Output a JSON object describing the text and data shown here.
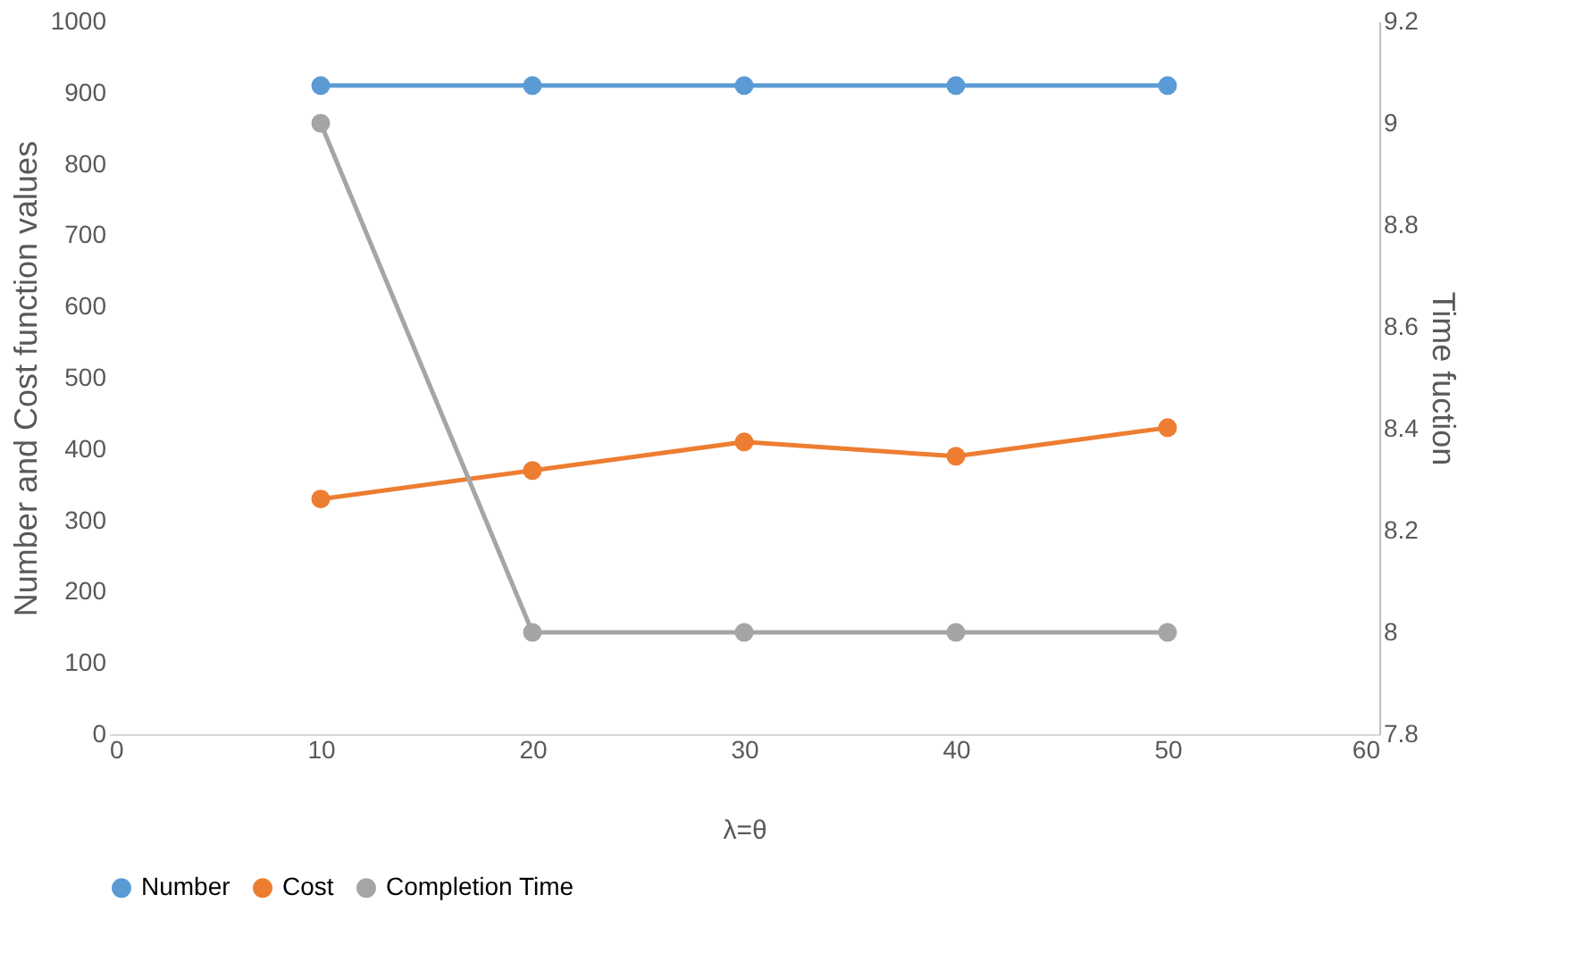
{
  "chart_data": {
    "type": "line",
    "xlabel": "λ=θ",
    "ylabel": "Number and Cost function values",
    "y2label": "Time fuction",
    "x": [
      10,
      20,
      30,
      40,
      50
    ],
    "xlim": [
      0,
      60
    ],
    "xticks": [
      0,
      10,
      20,
      30,
      40,
      50,
      60
    ],
    "ylim": [
      0,
      1000
    ],
    "yticks": [
      0,
      100,
      200,
      300,
      400,
      500,
      600,
      700,
      800,
      900,
      1000
    ],
    "y2lim": [
      7.8,
      9.2
    ],
    "y2ticks": [
      7.8,
      8,
      8.2,
      8.4,
      8.6,
      8.8,
      9,
      9.2
    ],
    "series": [
      {
        "name": "Number",
        "color": "#5b9bd5",
        "values": [
          910,
          910,
          910,
          910,
          910
        ]
      },
      {
        "name": "Cost",
        "color": "#ed7d31",
        "values": [
          330,
          370,
          410,
          390,
          430
        ]
      },
      {
        "name": "Completion Time",
        "color": "#a5a5a5",
        "values": [
          9,
          8,
          8,
          8,
          8
        ],
        "axis": "y2"
      }
    ],
    "marker": "circle",
    "line_style": "solid",
    "grid": false,
    "legend": "bottom"
  }
}
